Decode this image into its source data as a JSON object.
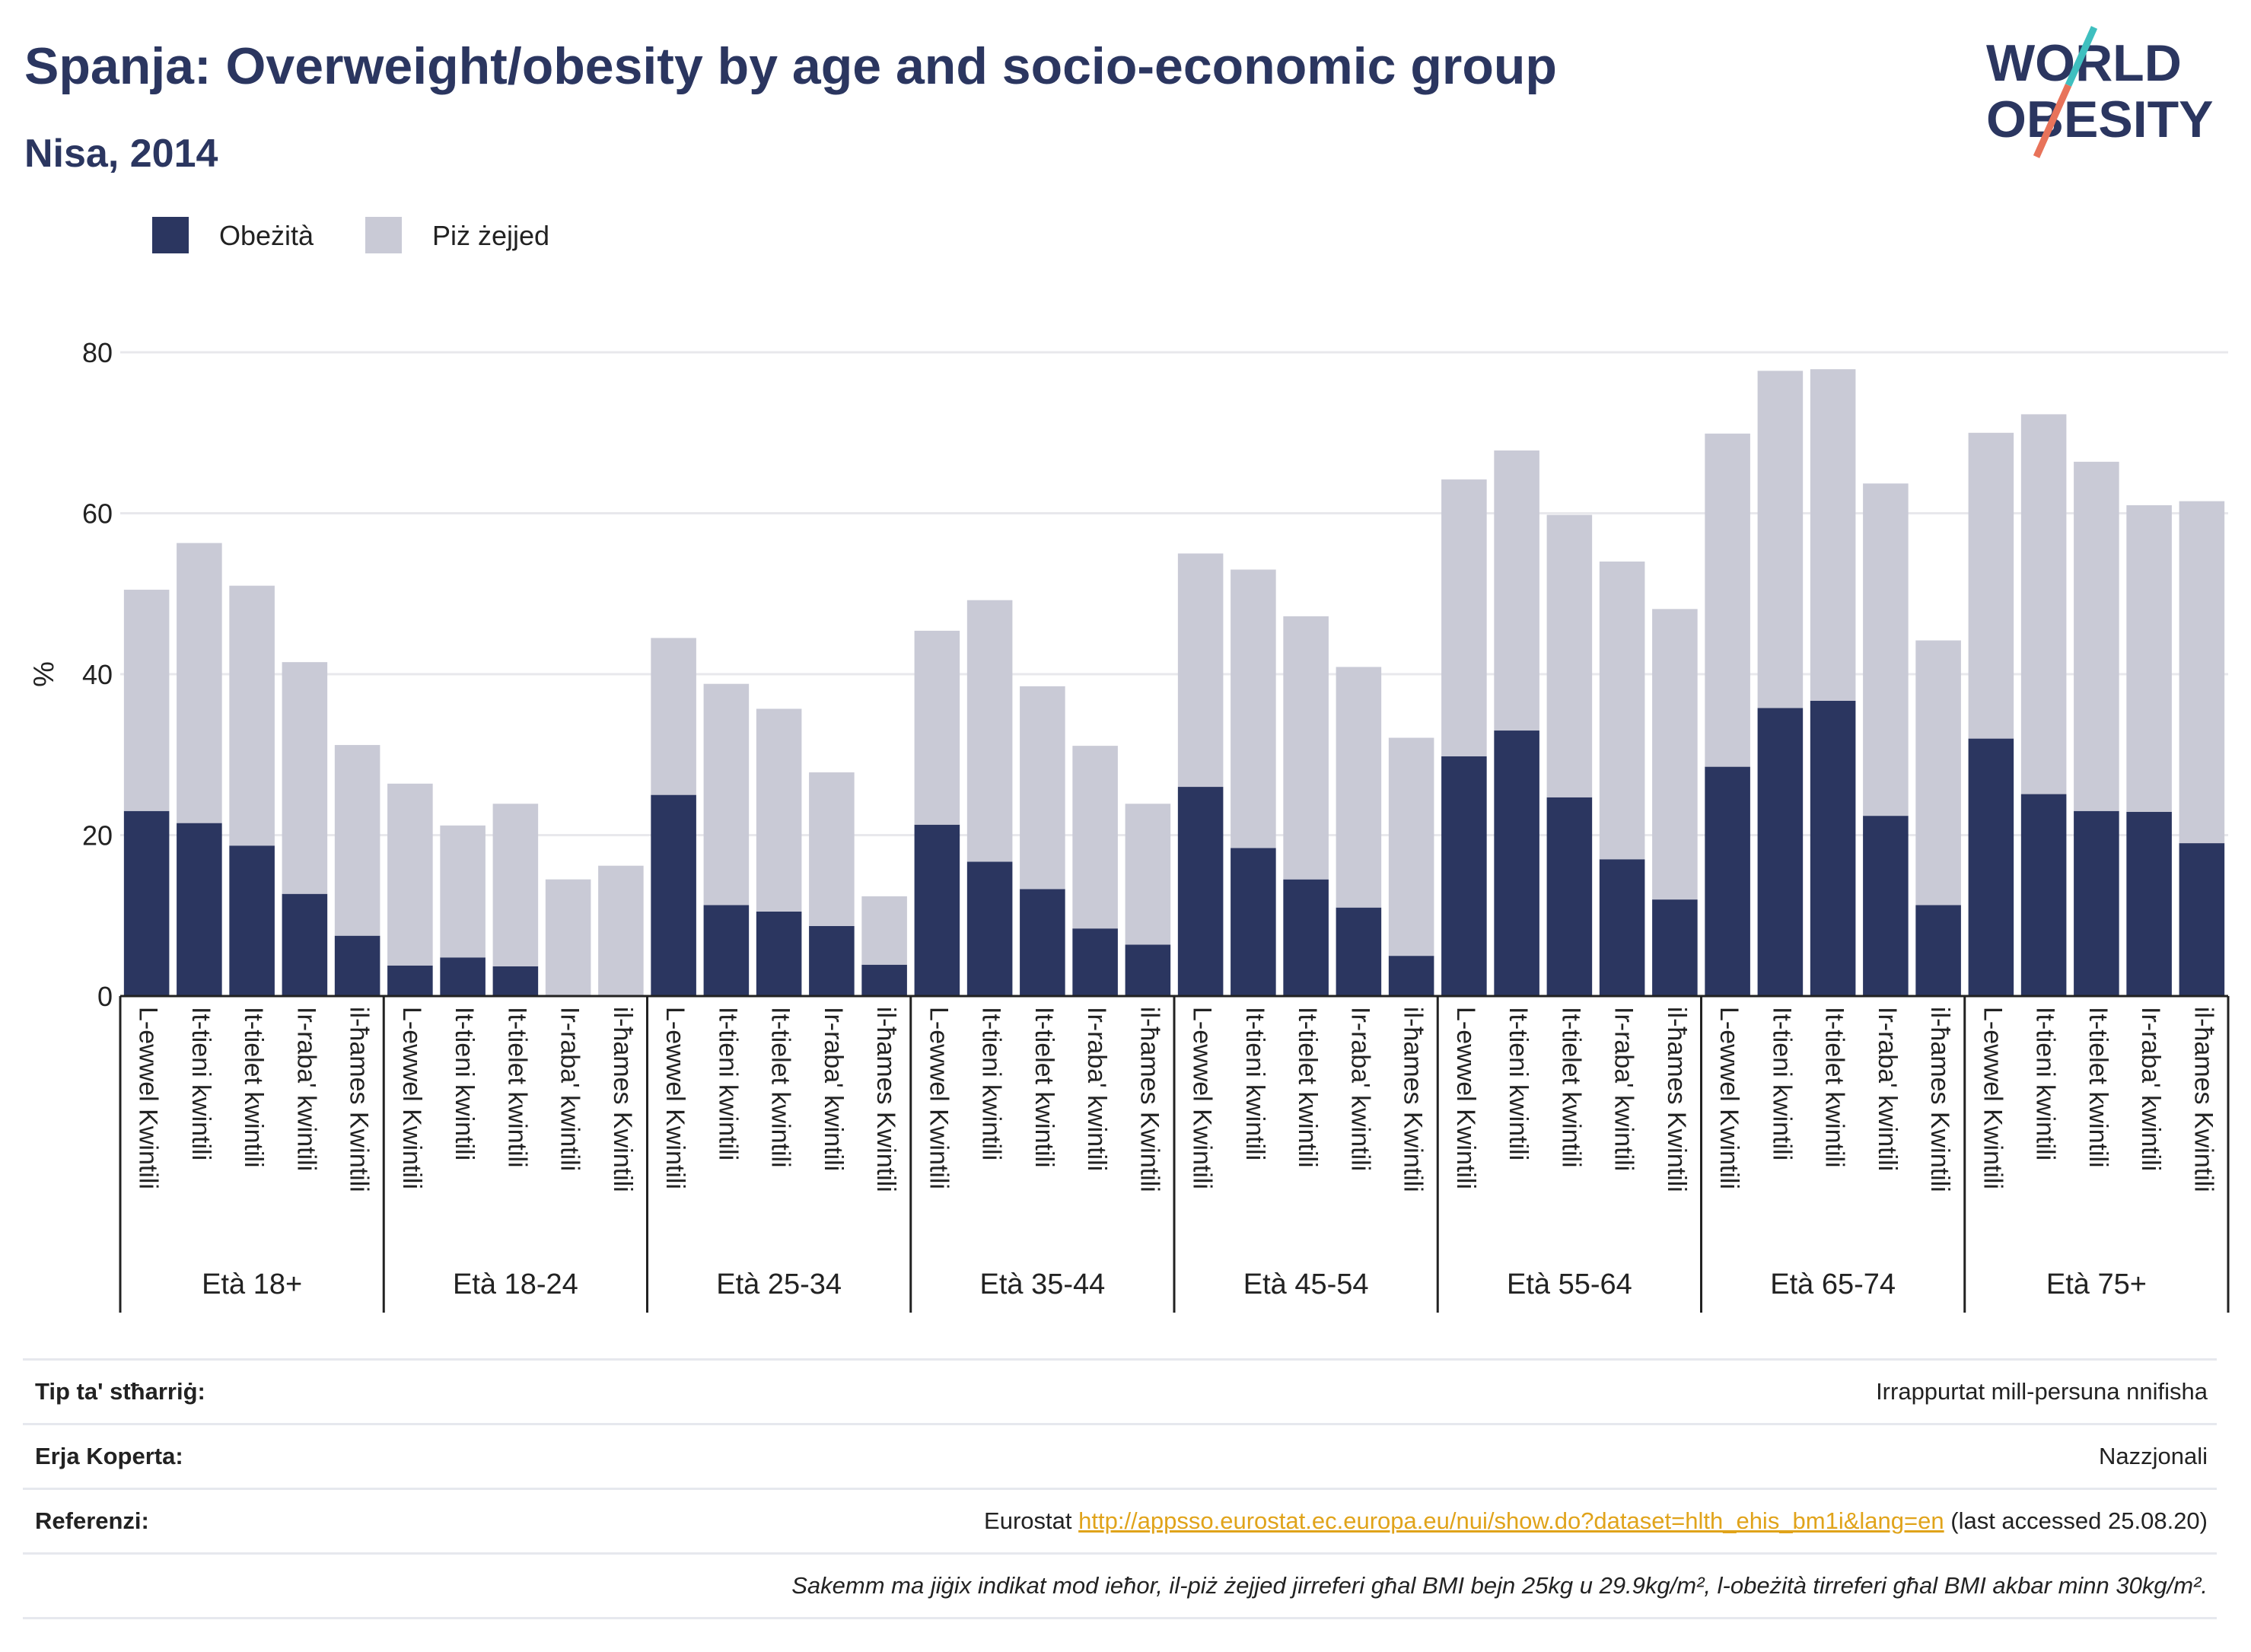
{
  "title": "Spanja: Overweight/obesity by age and socio-economic group",
  "subtitle": "Nisa, 2014",
  "logo": {
    "line1": "WORLD",
    "line2": "OBESITY"
  },
  "colors": {
    "obese": "#2b3660",
    "overweight": "#c9cad6",
    "title": "#2b3660",
    "link": "#e0a31a"
  },
  "chart_data": {
    "type": "bar",
    "stacked": true,
    "ylabel": "%",
    "ylim": [
      0,
      80
    ],
    "yticks": [
      0,
      20,
      40,
      60,
      80
    ],
    "grid": true,
    "legend_position": "top-left",
    "quintiles": [
      "L-ewwel Kwintili",
      "It-tieni kwintili",
      "It-tielet kwintili",
      "Ir-raba' kwintili",
      "il-ħames Kwintili"
    ],
    "groups": [
      "Età 18+",
      "Età 18-24",
      "Età 25-34",
      "Età 35-44",
      "Età 45-54",
      "Età 55-64",
      "Età 65-74",
      "Età 75+"
    ],
    "series": [
      {
        "name": "Obeżità",
        "values": [
          [
            23,
            21.5,
            18.7,
            12.7,
            7.5
          ],
          [
            3.8,
            4.8,
            3.7,
            0,
            0
          ],
          [
            25,
            11.3,
            10.5,
            8.7,
            3.9
          ],
          [
            21.3,
            16.7,
            13.3,
            8.4,
            6.4
          ],
          [
            26,
            18.4,
            14.5,
            11,
            5
          ],
          [
            29.8,
            33,
            24.7,
            17,
            12
          ],
          [
            28.5,
            35.8,
            36.7,
            22.4,
            11.3
          ],
          [
            32,
            25.1,
            23,
            22.9,
            19
          ]
        ]
      },
      {
        "name": "Piż żejjed",
        "values": [
          [
            27.5,
            34.8,
            32.3,
            28.8,
            23.7
          ],
          [
            22.6,
            16.4,
            20.2,
            14.5,
            16.2
          ],
          [
            19.5,
            27.5,
            25.2,
            19.1,
            8.5
          ],
          [
            24.1,
            32.5,
            25.2,
            22.7,
            17.5
          ],
          [
            29,
            34.6,
            32.7,
            29.9,
            27.1
          ],
          [
            34.4,
            34.8,
            35.1,
            37,
            36.1
          ],
          [
            41.4,
            41.9,
            41.2,
            41.3,
            32.9
          ],
          [
            38,
            47.2,
            43.4,
            38.1,
            42.5
          ]
        ]
      }
    ]
  },
  "info": {
    "type_label": "Tip ta' stħarriġ:",
    "type_value": "Irrappurtat mill-persuna nnifisha",
    "area_label": "Erja Koperta:",
    "area_value": "Nazzjonali",
    "ref_label": "Referenzi:",
    "ref_prefix": "Eurostat",
    "ref_link": "http://appsso.eurostat.ec.europa.eu/nui/show.do?dataset=hlth_ehis_bm1i&lang=en",
    "ref_suffix": "(last accessed 25.08.20)",
    "note": "Sakemm ma jiġix indikat mod ieħor, il-piż żejjed jirreferi għal BMI bejn 25kg u 29.9kg/m², l-obeżità tirreferi għal BMI akbar minn 30kg/m²."
  }
}
